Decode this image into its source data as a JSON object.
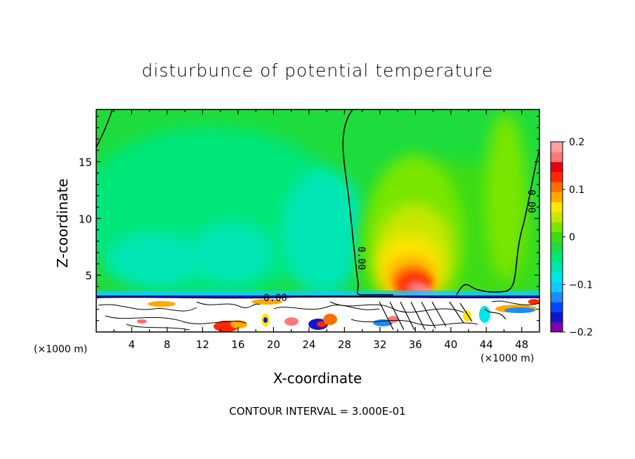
{
  "chart_data": {
    "type": "heatmap",
    "title": "disturbunce of potential temperature",
    "xlabel": "X-coordinate",
    "ylabel": "Z-coordinate",
    "x_unit": "(×1000 m)",
    "x_ticks": [
      4,
      8,
      12,
      16,
      20,
      24,
      28,
      32,
      36,
      40,
      44,
      48
    ],
    "y_ticks": [
      5,
      10,
      15
    ],
    "xlim": [
      0,
      50
    ],
    "ylim": [
      0,
      19.6
    ],
    "colorbar": {
      "min": -0.2,
      "max": 0.2,
      "tick_values": [
        0.2,
        0.1,
        0,
        -0.1,
        -0.2
      ],
      "tick_labels": [
        "0.2",
        "0.1",
        "0",
        "−0.1",
        "−0.2"
      ],
      "colors": [
        "#7e00b4",
        "#1414c8",
        "#0046ff",
        "#1e8cff",
        "#14c8ff",
        "#00e6e6",
        "#00e6b4",
        "#00e678",
        "#1edc3c",
        "#3cdc14",
        "#78e600",
        "#c8e600",
        "#ffe600",
        "#ffaa00",
        "#ff6e00",
        "#ff2800",
        "#e60014",
        "#ff7878",
        "#ffa0a0"
      ]
    },
    "contour_labels": [
      "0.00",
      "0.00",
      "0.00"
    ],
    "annotations": [
      "CONTOUR INTERVAL = 3.000E-01"
    ]
  }
}
